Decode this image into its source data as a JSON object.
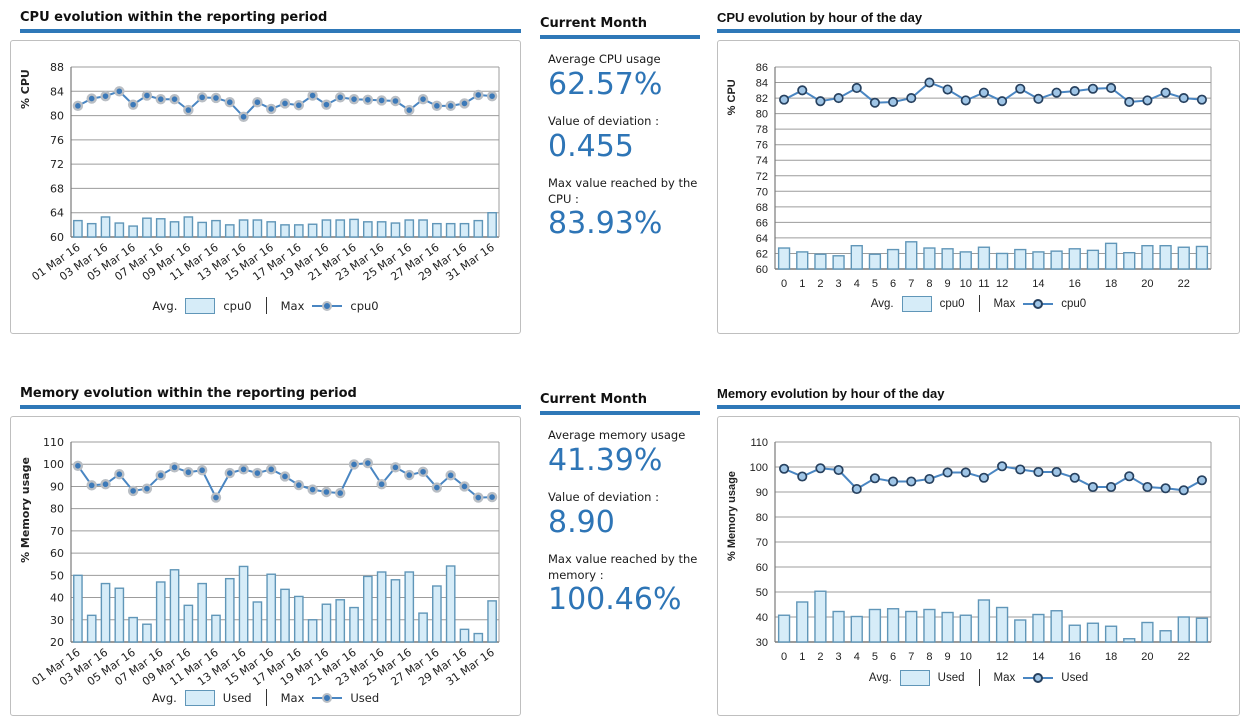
{
  "colors": {
    "accent_underline": "#2e78b8",
    "value_text": "#2e75b6",
    "bar_fill": "#d6ecf8",
    "bar_stroke": "#6096b8",
    "line": "#4a86c2",
    "marker_solid_fill": "#3c79b8",
    "marker_solid_halo": "#b9bec4",
    "marker_ring_fill": "#9fc5e6",
    "marker_ring_stroke": "#27415f",
    "grid": "#9c9c9c",
    "axis": "#7a7a7a",
    "panel_border": "#bfbfbf"
  },
  "stats_panels": [
    {
      "heading": "Current Month",
      "items": [
        {
          "label": "Average CPU usage",
          "value": "62.57%"
        },
        {
          "label": "Value of deviation :",
          "value": "0.455"
        },
        {
          "label": "Max value reached by the CPU :",
          "value": "83.93%"
        }
      ]
    },
    {
      "heading": "Current Month",
      "items": [
        {
          "label": "Average memory usage",
          "value": "41.39%"
        },
        {
          "label": "Value of deviation :",
          "value": "8.90"
        },
        {
          "label": "Max value reached by the memory :",
          "value": "100.46%"
        }
      ]
    }
  ],
  "chart_data": [
    {
      "type": "bar+line",
      "title": "CPU evolution within the reporting period",
      "ylabel": "% CPU",
      "ylim": [
        60,
        88
      ],
      "ytick_step": 4,
      "grid": true,
      "legend_position": "bottom",
      "marker_style": "solid",
      "categories": [
        "01 Mar 16",
        "02 Mar 16",
        "03 Mar 16",
        "04 Mar 16",
        "05 Mar 16",
        "06 Mar 16",
        "07 Mar 16",
        "08 Mar 16",
        "09 Mar 16",
        "10 Mar 16",
        "11 Mar 16",
        "12 Mar 16",
        "13 Mar 16",
        "14 Mar 16",
        "15 Mar 16",
        "16 Mar 16",
        "17 Mar 16",
        "18 Mar 16",
        "19 Mar 16",
        "20 Mar 16",
        "21 Mar 16",
        "22 Mar 16",
        "23 Mar 16",
        "24 Mar 16",
        "25 Mar 16",
        "26 Mar 16",
        "27 Mar 16",
        "28 Mar 16",
        "29 Mar 16",
        "30 Mar 16",
        "31 Mar 16"
      ],
      "label_indices": [
        0,
        2,
        4,
        6,
        8,
        10,
        12,
        14,
        16,
        18,
        20,
        22,
        24,
        26,
        28,
        30
      ],
      "series": [
        {
          "role": "Avg.",
          "name": "cpu0",
          "type": "bar",
          "values": [
            62.7,
            62.2,
            63.3,
            62.3,
            61.8,
            63.1,
            63.0,
            62.5,
            63.3,
            62.4,
            62.7,
            62.0,
            62.8,
            62.8,
            62.5,
            62.0,
            62.0,
            62.1,
            62.8,
            62.8,
            62.9,
            62.5,
            62.5,
            62.3,
            62.8,
            62.8,
            62.2,
            62.2,
            62.2,
            62.7,
            64.0
          ]
        },
        {
          "role": "Max",
          "name": "cpu0",
          "type": "line",
          "values": [
            81.6,
            82.8,
            83.2,
            84.0,
            81.8,
            83.3,
            82.7,
            82.7,
            80.9,
            83.0,
            82.9,
            82.2,
            79.8,
            82.2,
            81.1,
            82.0,
            81.7,
            83.3,
            81.8,
            83.0,
            82.7,
            82.6,
            82.5,
            82.4,
            80.9,
            82.7,
            81.6,
            81.6,
            82.0,
            83.4,
            83.2
          ]
        }
      ]
    },
    {
      "type": "bar+line",
      "title": "CPU evolution by hour of the day",
      "ylabel": "% CPU",
      "ylim": [
        60,
        86
      ],
      "ytick_step": 2,
      "grid": true,
      "legend_position": "bottom",
      "marker_style": "ring",
      "categories": [
        "0",
        "1",
        "2",
        "3",
        "4",
        "5",
        "6",
        "7",
        "8",
        "9",
        "10",
        "11",
        "12",
        "13",
        "14",
        "15",
        "16",
        "17",
        "18",
        "19",
        "20",
        "21",
        "22",
        "23"
      ],
      "label_indices": [
        0,
        1,
        2,
        3,
        4,
        5,
        6,
        7,
        8,
        9,
        10,
        11,
        12,
        14,
        16,
        18,
        20,
        22
      ],
      "series": [
        {
          "role": "Avg.",
          "name": "cpu0",
          "type": "bar",
          "values": [
            62.7,
            62.2,
            61.9,
            61.7,
            63.0,
            61.9,
            62.5,
            63.5,
            62.7,
            62.6,
            62.2,
            62.8,
            62.0,
            62.5,
            62.2,
            62.3,
            62.6,
            62.4,
            63.3,
            62.1,
            63.0,
            63.0,
            62.8,
            62.9
          ]
        },
        {
          "role": "Max",
          "name": "cpu0",
          "type": "line",
          "values": [
            81.8,
            83.0,
            81.6,
            82.0,
            83.3,
            81.4,
            81.5,
            82.0,
            84.0,
            83.1,
            81.7,
            82.7,
            81.6,
            83.2,
            81.9,
            82.7,
            82.9,
            83.2,
            83.3,
            81.5,
            81.7,
            82.7,
            82.0,
            81.8
          ]
        }
      ]
    },
    {
      "type": "bar+line",
      "title": "Memory evolution within the reporting period",
      "ylabel": "% Memory usage",
      "ylim": [
        20,
        110
      ],
      "ytick_step": 10,
      "grid": true,
      "legend_position": "bottom",
      "marker_style": "solid",
      "categories": [
        "01 Mar 16",
        "02 Mar 16",
        "03 Mar 16",
        "04 Mar 16",
        "05 Mar 16",
        "06 Mar 16",
        "07 Mar 16",
        "08 Mar 16",
        "09 Mar 16",
        "10 Mar 16",
        "11 Mar 16",
        "12 Mar 16",
        "13 Mar 16",
        "14 Mar 16",
        "15 Mar 16",
        "16 Mar 16",
        "17 Mar 16",
        "18 Mar 16",
        "19 Mar 16",
        "20 Mar 16",
        "21 Mar 16",
        "22 Mar 16",
        "23 Mar 16",
        "24 Mar 16",
        "25 Mar 16",
        "26 Mar 16",
        "27 Mar 16",
        "28 Mar 16",
        "29 Mar 16",
        "30 Mar 16",
        "31 Mar 16"
      ],
      "label_indices": [
        0,
        2,
        4,
        6,
        8,
        10,
        12,
        14,
        16,
        18,
        20,
        22,
        24,
        26,
        28,
        30
      ],
      "series": [
        {
          "role": "Avg.",
          "name": "Used",
          "type": "bar",
          "values": [
            50,
            32,
            46.3,
            44.2,
            31,
            28,
            47,
            52.5,
            36.5,
            46.3,
            32,
            48.5,
            54,
            38,
            50.5,
            43.7,
            40.5,
            30,
            37,
            39,
            35.5,
            49.5,
            51.5,
            48,
            51.5,
            33,
            45.2,
            54.2,
            25.7,
            23.8,
            38.5
          ]
        },
        {
          "role": "Max",
          "name": "Used",
          "type": "line",
          "values": [
            99.3,
            90.5,
            91,
            95.5,
            88,
            89,
            95,
            98.6,
            96.4,
            97.3,
            85,
            96,
            97.7,
            96,
            97.7,
            94.5,
            90.6,
            88.6,
            87.5,
            87,
            99.9,
            100.5,
            91,
            98.6,
            95.1,
            96.6,
            89.5,
            95,
            90,
            85,
            85.2
          ]
        }
      ]
    },
    {
      "type": "bar+line",
      "title": "Memory evolution by hour of the day",
      "ylabel": "% Memory usage",
      "ylim": [
        30,
        110
      ],
      "ytick_step": 10,
      "grid": true,
      "legend_position": "bottom",
      "marker_style": "ring",
      "categories": [
        "0",
        "1",
        "2",
        "3",
        "4",
        "5",
        "6",
        "7",
        "8",
        "9",
        "10",
        "11",
        "12",
        "13",
        "14",
        "15",
        "16",
        "17",
        "18",
        "19",
        "20",
        "21",
        "22",
        "23"
      ],
      "label_indices": [
        0,
        1,
        2,
        3,
        4,
        5,
        6,
        7,
        8,
        9,
        10,
        12,
        14,
        16,
        18,
        20,
        22
      ],
      "series": [
        {
          "role": "Avg.",
          "name": "Used",
          "type": "bar",
          "values": [
            40.7,
            46,
            50.3,
            42.2,
            40.2,
            43,
            43.3,
            42.2,
            43,
            41.8,
            40.7,
            46.8,
            43.8,
            38.8,
            41,
            42.5,
            36.7,
            37.5,
            36.3,
            31.3,
            37.8,
            34.5,
            40,
            39.5
          ]
        },
        {
          "role": "Max",
          "name": "Used",
          "type": "line",
          "values": [
            99.3,
            96.2,
            99.5,
            98.8,
            91.2,
            95.5,
            94.2,
            94.2,
            95.2,
            97.8,
            97.8,
            95.7,
            100.3,
            99,
            98,
            98,
            95.7,
            92,
            92,
            96.3,
            92,
            91.5,
            90.7,
            94.7
          ]
        }
      ]
    }
  ]
}
